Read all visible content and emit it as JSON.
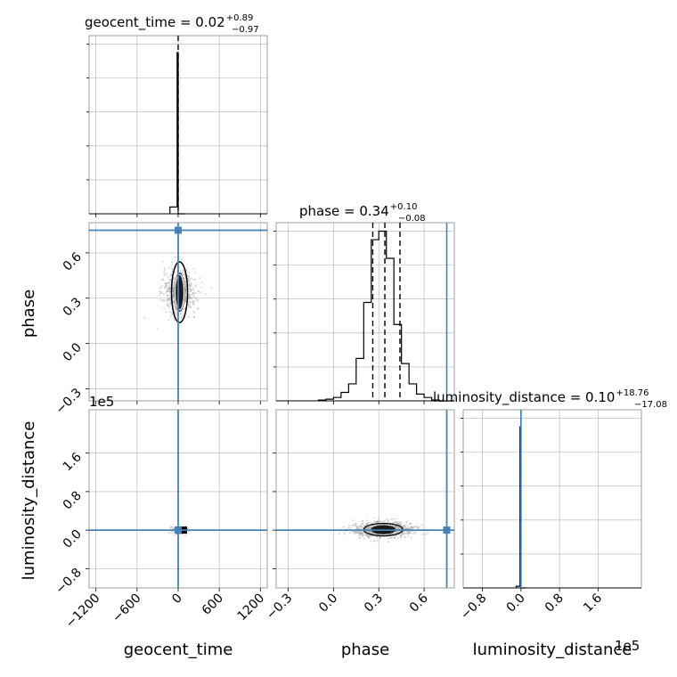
{
  "chart_data": [
    {
      "id": "p00",
      "type": "histogram",
      "title_main": "geocent_time = 0.02",
      "title_sup": "+0.89",
      "title_sub": "−0.97",
      "xlim": [
        -1300,
        1300
      ],
      "xticks": [
        "−1200",
        "−600",
        "0",
        "600",
        "1200"
      ],
      "xtick_values": [
        -1200,
        -600,
        0,
        600,
        1200
      ],
      "bins": [
        -120,
        -15,
        0,
        100
      ],
      "counts": [
        0.04,
        0.95,
        0
      ],
      "ymax": 1.0,
      "quantile_lines": [
        0.02
      ],
      "truth": null
    },
    {
      "id": "p10",
      "type": "scatter",
      "xlim": [
        -1300,
        1300
      ],
      "ylim": [
        -0.38,
        0.8
      ],
      "yticks": [
        "−0.3",
        "0.0",
        "0.3",
        "0.6"
      ],
      "ytick_values": [
        -0.3,
        0.0,
        0.3,
        0.6
      ],
      "ylabel": "phase",
      "truth": {
        "x": 0,
        "y": 0.75
      },
      "cloud_center": {
        "x": 20,
        "y": 0.34
      },
      "cloud_spread": {
        "x": 120,
        "y": 0.07
      },
      "contour_core": {
        "x": 35,
        "y": 0.09
      }
    },
    {
      "id": "p11",
      "type": "histogram",
      "title_main": "phase = 0.34",
      "title_sup": "+0.10",
      "title_sub": "−0.08",
      "xlim": [
        -0.38,
        0.8
      ],
      "bins": [
        -0.1,
        -0.05,
        0.0,
        0.05,
        0.1,
        0.15,
        0.2,
        0.25,
        0.3,
        0.35,
        0.4,
        0.45,
        0.5,
        0.55,
        0.6,
        0.65,
        0.7,
        0.75,
        0.8
      ],
      "counts": [
        0.005,
        0.01,
        0.02,
        0.05,
        0.1,
        0.25,
        0.58,
        0.95,
        1.0,
        0.84,
        0.45,
        0.22,
        0.1,
        0.04,
        0.02,
        0.005,
        0.0,
        0.0
      ],
      "ymax": 1.0,
      "quantile_lines": [
        0.26,
        0.34,
        0.44
      ],
      "truth": 0.75
    },
    {
      "id": "p20",
      "type": "scatter",
      "xlim": [
        -1300,
        1300
      ],
      "ylim": [
        -120000,
        250000
      ],
      "yticks": [
        "−0.8",
        "0.0",
        "0.8",
        "1.6"
      ],
      "ytick_values": [
        -80000,
        0,
        80000,
        160000
      ],
      "ylabel": "luminosity_distance",
      "y_offset_label": "1e5",
      "xticks": [
        "−1200",
        "−600",
        "0",
        "600",
        "1200"
      ],
      "xtick_values": [
        -1200,
        -600,
        0,
        600,
        1200
      ],
      "xlabel": "geocent_time",
      "truth": {
        "x": 0,
        "y": 0
      },
      "cloud_center": {
        "x": 10,
        "y": 0
      },
      "cloud_spread": {
        "x": 60,
        "y": 4000
      }
    },
    {
      "id": "p21",
      "type": "scatter",
      "xlim": [
        -0.38,
        0.8
      ],
      "ylim": [
        -120000,
        250000
      ],
      "xticks": [
        "−0.3",
        "0.0",
        "0.3",
        "0.6"
      ],
      "xtick_values": [
        -0.3,
        0.0,
        0.3,
        0.6
      ],
      "xlabel": "phase",
      "truth": {
        "x": 0.75,
        "y": 0
      },
      "cloud_center": {
        "x": 0.33,
        "y": 1000
      },
      "cloud_spread": {
        "x": 0.1,
        "y": 8000
      }
    },
    {
      "id": "p22",
      "type": "histogram",
      "title_main": "luminosity_distance = 0.10",
      "title_sup": "+18.76",
      "title_sub": "−17.08",
      "xlim": [
        -120000,
        250000
      ],
      "xticks": [
        "−0.8",
        "0.0",
        "0.8",
        "1.6"
      ],
      "xtick_values": [
        -80000,
        0,
        80000,
        160000
      ],
      "xlabel": "luminosity_distance",
      "x_offset_label": "1e5",
      "bins": [
        -10000,
        -2000,
        0,
        10000
      ],
      "counts": [
        0.01,
        0.95,
        0
      ],
      "ymax": 1.0,
      "quantile_lines": [
        0
      ],
      "truth": 0
    }
  ],
  "colors": {
    "hist": "#000000",
    "truth": "#4682b4",
    "grid": "#b0b0b0",
    "scatter": "#9a9a9a"
  }
}
